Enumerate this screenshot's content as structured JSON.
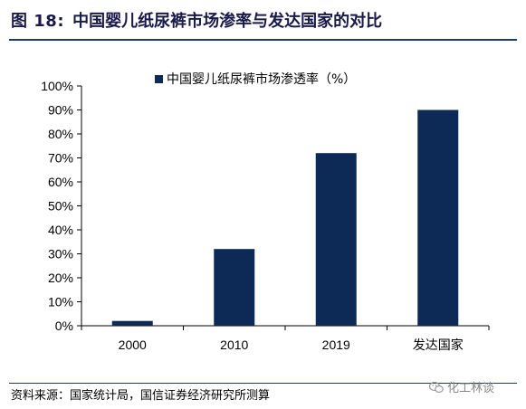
{
  "figure": {
    "number": "图 18:",
    "title": "中国婴儿纸尿裤市场渗率与发达国家的对比"
  },
  "footer": {
    "source": "资料来源：国家统计局，国信证券经济研究所测算",
    "watermark": "化工林谈",
    "watermark_icon": "wechat-icon"
  },
  "colors": {
    "bar": "#0d2a57",
    "rule": "#1f3a6e",
    "title": "#1a1a4a"
  },
  "chart_data": {
    "type": "bar",
    "categories": [
      "2000",
      "2010",
      "2019",
      "发达国家"
    ],
    "series": [
      {
        "name": "中国婴儿纸尿裤市场渗透率（%）",
        "values": [
          2,
          32,
          72,
          90
        ]
      }
    ],
    "y_tick_labels": [
      "0%",
      "10%",
      "20%",
      "30%",
      "40%",
      "50%",
      "60%",
      "70%",
      "80%",
      "90%",
      "100%"
    ],
    "ylim": [
      0,
      100
    ],
    "y_unit": "%",
    "grid": false,
    "legend_position": "top-center"
  }
}
